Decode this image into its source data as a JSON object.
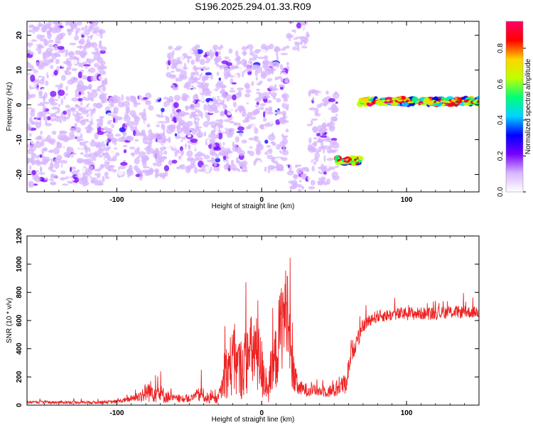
{
  "title": "S196.2025.294.01.33.R09",
  "chart_data": [
    {
      "type": "heatmap",
      "name": "spectrogram",
      "xlabel": "Height of straight line (km)",
      "ylabel": "Frequency (Hz)",
      "xlim": [
        -162,
        150
      ],
      "ylim": [
        -25,
        24
      ],
      "xticks": [
        -100,
        0,
        100
      ],
      "yticks": [
        20,
        10,
        0,
        -10,
        -20
      ],
      "colorbar": {
        "label": "Normalized spectral amplitude",
        "range": [
          0,
          0.95
        ],
        "ticks": [
          "0.0",
          "0.2",
          "0.4",
          "0.6",
          "0.8"
        ],
        "tick_values": [
          0,
          0.2,
          0.4,
          0.6,
          0.8
        ],
        "colors": [
          "#ffffff",
          "#d7b6ff",
          "#7700ff",
          "#0000ff",
          "#00d4ff",
          "#00ff77",
          "#bfff00",
          "#ffd400",
          "#ff0000",
          "#ff0066"
        ]
      },
      "segments": [
        {
          "x_start": -162,
          "x_end": -108,
          "f_center": 3,
          "f_spread": 26,
          "amplitude": 0.08
        },
        {
          "x_start": -108,
          "x_end": -65,
          "f_center": -9,
          "f_spread": 12,
          "amplitude": 0.2
        },
        {
          "x_start": -65,
          "x_end": 18,
          "f_center": -1,
          "f_spread": 18,
          "amplitude": 0.2
        },
        {
          "x_start": 18,
          "x_end": 33,
          "f_center": 21,
          "f_spread": 5,
          "amplitude": 0.12
        },
        {
          "x_start": 18,
          "x_end": 33,
          "f_center": -22,
          "f_spread": 5,
          "amplitude": 0.12
        },
        {
          "x_start": 33,
          "x_end": 52,
          "f_center": -10,
          "f_spread": 14,
          "amplitude": 0.15
        },
        {
          "x_start": 52,
          "x_end": 68,
          "f_center": -16,
          "f_spread": 1.5,
          "amplitude": 0.85
        },
        {
          "x_start": 68,
          "x_end": 150,
          "f_center": 1,
          "f_spread": 1.6,
          "amplitude": 0.85
        }
      ]
    },
    {
      "type": "line",
      "name": "snr",
      "xlabel": "Height of straight line (km)",
      "ylabel": "SNR (10 * v/v)",
      "xlim": [
        -162,
        150
      ],
      "ylim": [
        0,
        1200
      ],
      "xticks": [
        -100,
        0,
        100
      ],
      "yticks": [
        0,
        200,
        400,
        600,
        800,
        1000,
        1200
      ],
      "color": "#ee2222",
      "anchors": {
        "x": [
          -162,
          -110,
          -100,
          -92,
          -85,
          -78,
          -72,
          -68,
          -62,
          -55,
          -48,
          -42,
          -36,
          -30,
          -24,
          -20,
          -15,
          -10,
          -5,
          0,
          5,
          10,
          14,
          18,
          21,
          25,
          30,
          40,
          50,
          55,
          58,
          62,
          66,
          70,
          75,
          80,
          90,
          100,
          110,
          120,
          130,
          140,
          150
        ],
        "base": [
          20,
          20,
          25,
          40,
          60,
          100,
          90,
          70,
          50,
          40,
          50,
          80,
          40,
          40,
          250,
          300,
          250,
          320,
          400,
          260,
          120,
          350,
          600,
          700,
          250,
          120,
          110,
          100,
          100,
          140,
          150,
          380,
          450,
          560,
          610,
          630,
          640,
          650,
          650,
          650,
          660,
          660,
          660
        ],
        "noise": [
          20,
          20,
          25,
          40,
          80,
          160,
          150,
          120,
          60,
          40,
          60,
          120,
          60,
          60,
          400,
          500,
          450,
          500,
          600,
          450,
          250,
          500,
          700,
          600,
          350,
          120,
          100,
          80,
          100,
          130,
          150,
          150,
          120,
          90,
          90,
          90,
          90,
          100,
          90,
          90,
          90,
          90,
          80
        ]
      }
    }
  ]
}
